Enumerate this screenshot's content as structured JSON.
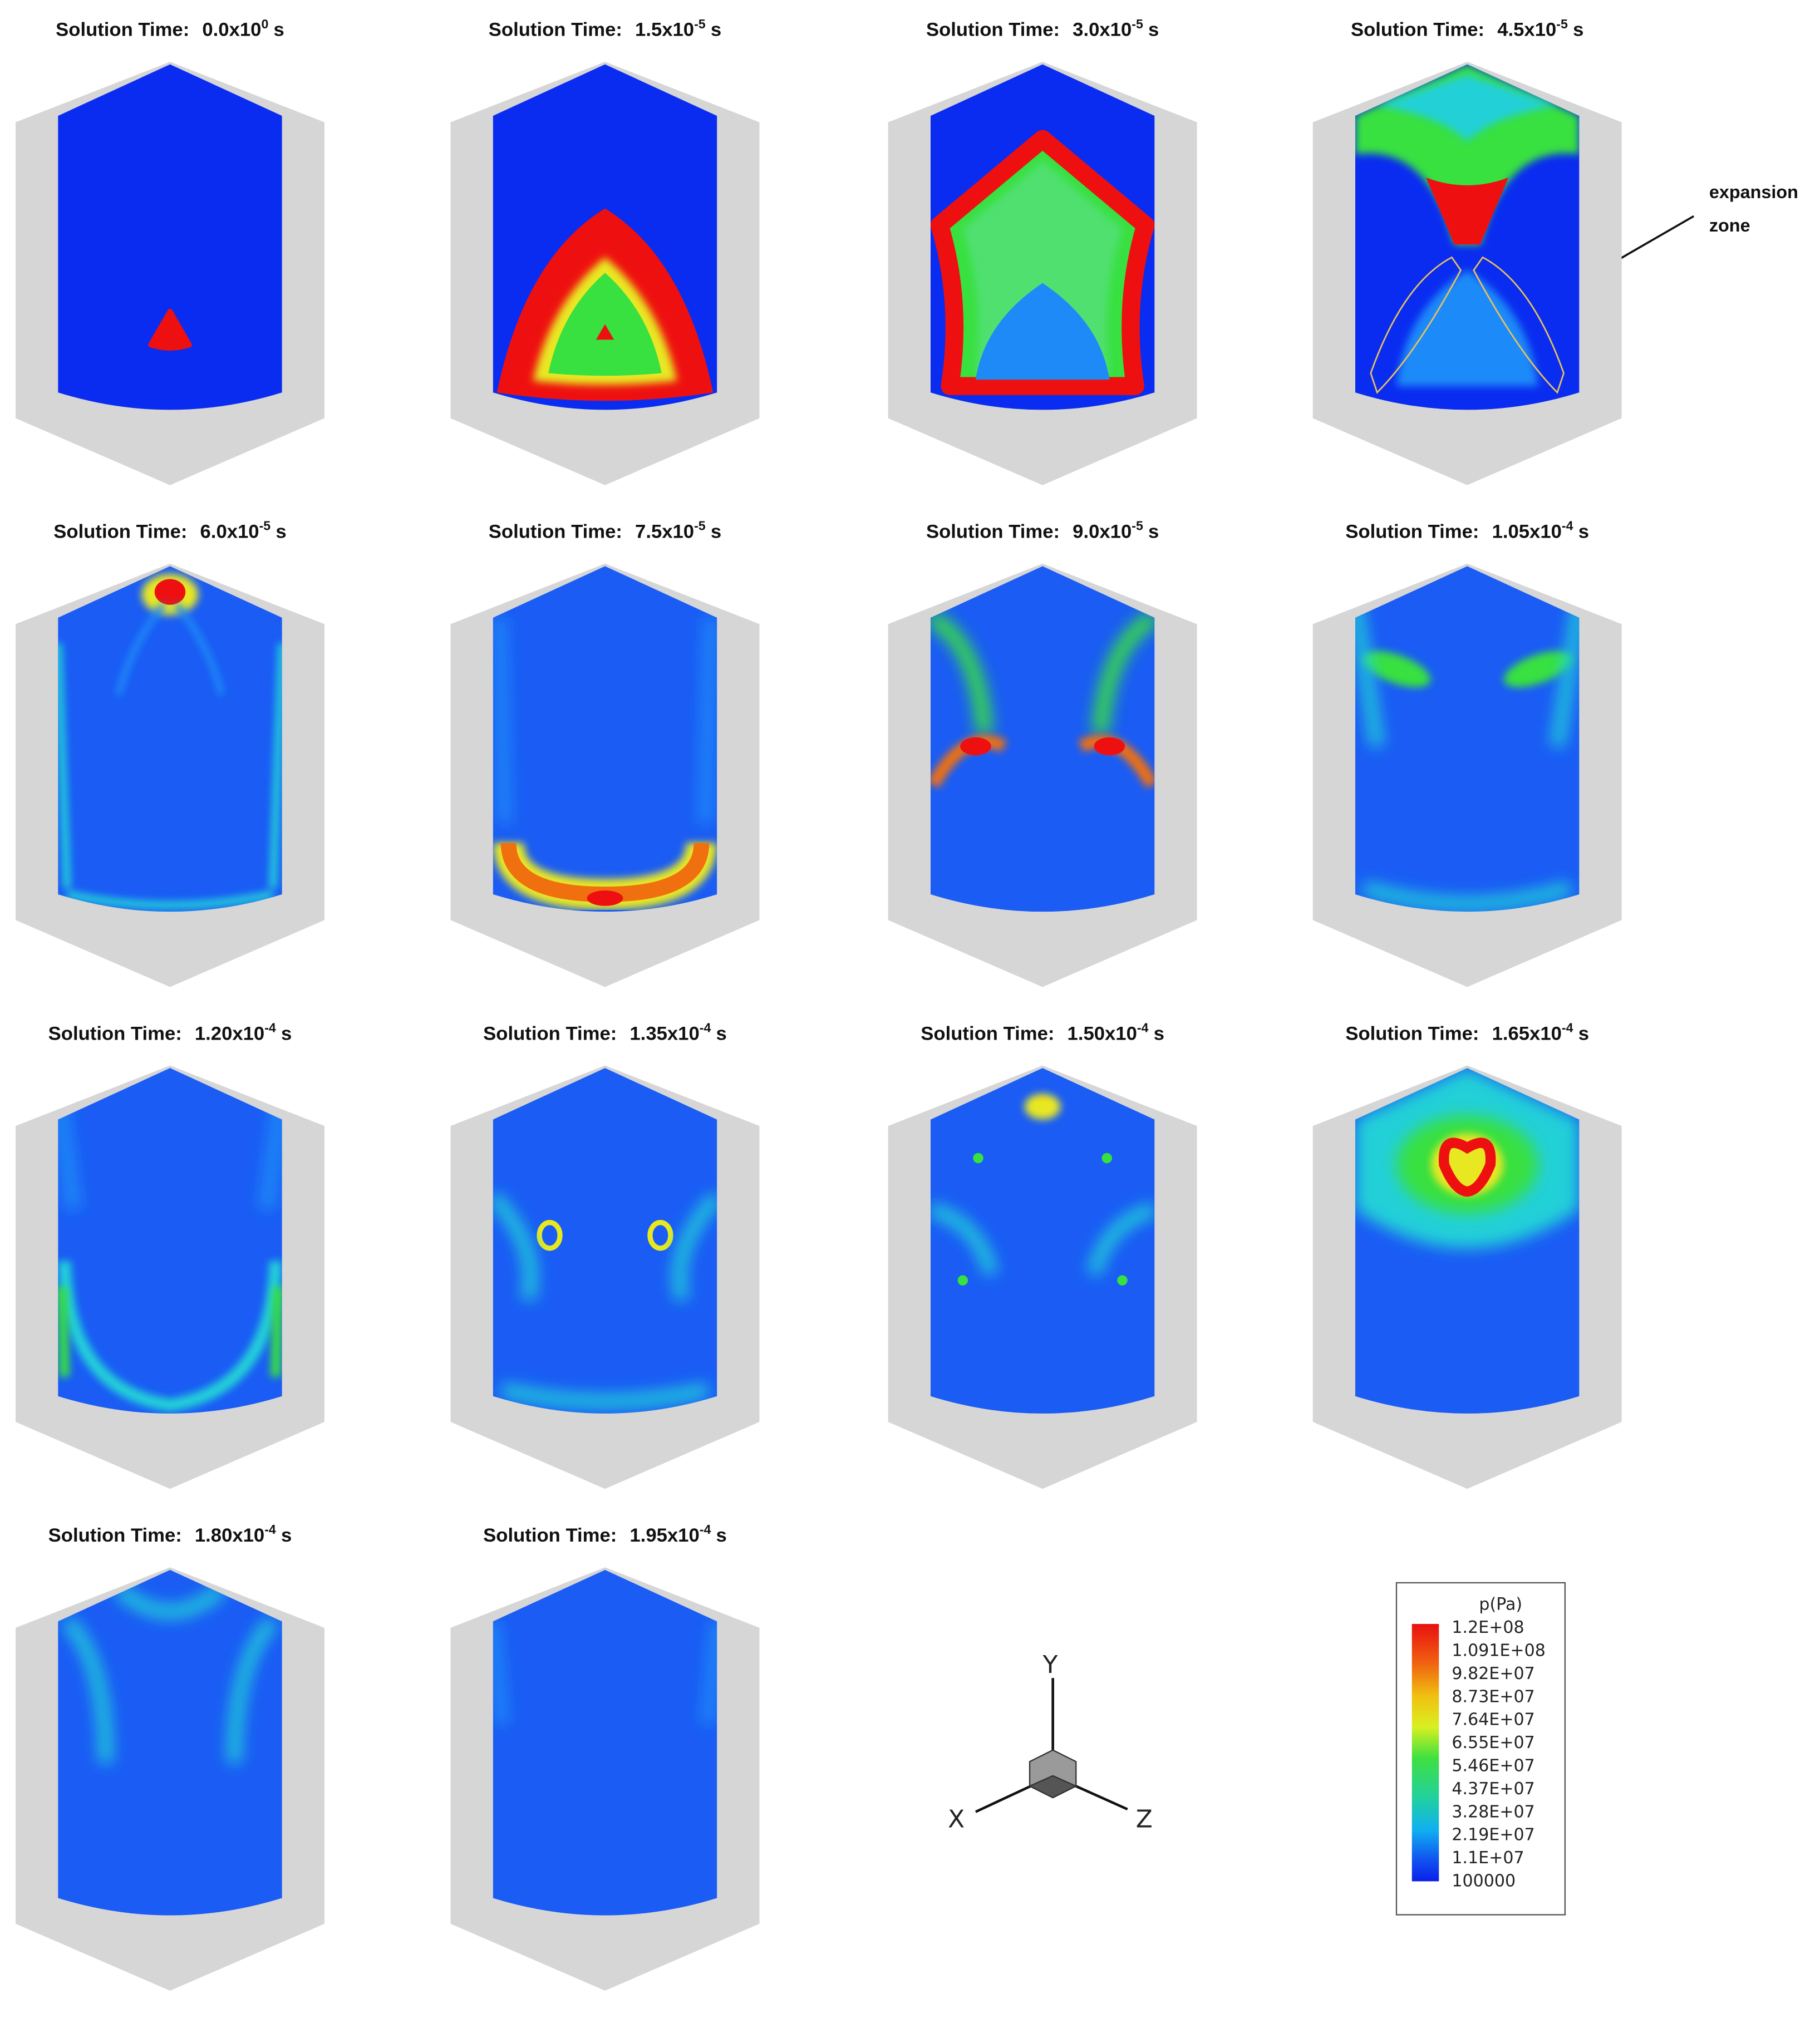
{
  "panels": [
    {
      "label": "Solution Time:",
      "mantissa": "0.0x10",
      "exponent": "0",
      "unit": "s"
    },
    {
      "label": "Solution Time:",
      "mantissa": "1.5x10",
      "exponent": "-5",
      "unit": "s"
    },
    {
      "label": "Solution Time:",
      "mantissa": "3.0x10",
      "exponent": "-5",
      "unit": "s"
    },
    {
      "label": "Solution Time:",
      "mantissa": "4.5x10",
      "exponent": "-5",
      "unit": "s"
    },
    {
      "label": "Solution Time:",
      "mantissa": "6.0x10",
      "exponent": "-5",
      "unit": "s"
    },
    {
      "label": "Solution Time:",
      "mantissa": "7.5x10",
      "exponent": "-5",
      "unit": "s"
    },
    {
      "label": "Solution Time:",
      "mantissa": "9.0x10",
      "exponent": "-5",
      "unit": "s"
    },
    {
      "label": "Solution Time:",
      "mantissa": "1.05x10",
      "exponent": "-4",
      "unit": "s"
    },
    {
      "label": "Solution Time:",
      "mantissa": "1.20x10",
      "exponent": "-4",
      "unit": "s"
    },
    {
      "label": "Solution Time:",
      "mantissa": "1.35x10",
      "exponent": "-4",
      "unit": "s"
    },
    {
      "label": "Solution Time:",
      "mantissa": "1.50x10",
      "exponent": "-4",
      "unit": "s"
    },
    {
      "label": "Solution Time:",
      "mantissa": "1.65x10",
      "exponent": "-4",
      "unit": "s"
    },
    {
      "label": "Solution Time:",
      "mantissa": "1.80x10",
      "exponent": "-4",
      "unit": "s"
    },
    {
      "label": "Solution Time:",
      "mantissa": "1.95x10",
      "exponent": "-4",
      "unit": "s"
    }
  ],
  "annotation": {
    "lines": [
      "expansion",
      "zone"
    ]
  },
  "legend": {
    "title": "p(Pa)",
    "levels": [
      "1.2E+08",
      "1.091E+08",
      "9.82E+07",
      "8.73E+07",
      "7.64E+07",
      "6.55E+07",
      "5.46E+07",
      "4.37E+07",
      "3.28E+07",
      "2.19E+07",
      "1.1E+07",
      "100000"
    ]
  },
  "axes": {
    "x": "X",
    "y": "Y",
    "z": "Z"
  }
}
